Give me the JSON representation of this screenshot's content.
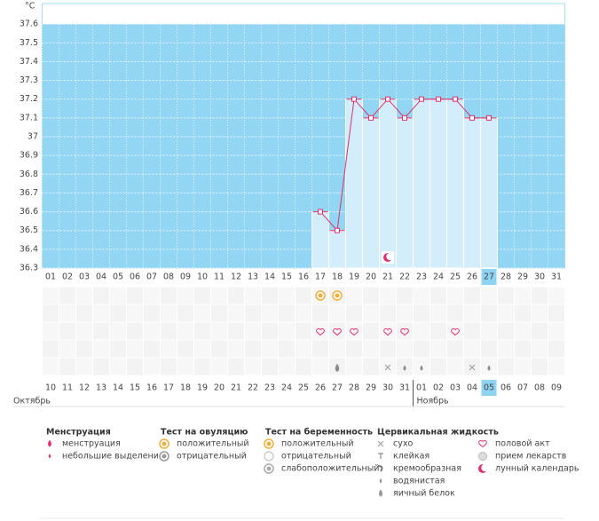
{
  "chart_data": {
    "type": "line",
    "y_unit": "°C",
    "categories": [
      "01",
      "02",
      "03",
      "04",
      "05",
      "06",
      "07",
      "08",
      "09",
      "10",
      "11",
      "12",
      "13",
      "14",
      "15",
      "16",
      "17",
      "18",
      "19",
      "20",
      "21",
      "22",
      "23",
      "24",
      "25",
      "26",
      "27",
      "28",
      "29",
      "30",
      "31"
    ],
    "values": [
      null,
      null,
      null,
      null,
      null,
      null,
      null,
      null,
      null,
      null,
      null,
      null,
      null,
      null,
      null,
      null,
      36.6,
      36.5,
      37.2,
      37.1,
      37.2,
      37.1,
      37.2,
      37.2,
      37.2,
      37.1,
      37.1,
      null,
      null,
      null,
      null
    ],
    "ylim": [
      36.3,
      37.7
    ],
    "yticks": [
      36.3,
      36.4,
      36.5,
      36.6,
      36.7,
      36.8,
      36.9,
      37,
      37.1,
      37.2,
      37.3,
      37.4,
      37.5,
      37.6
    ],
    "grid": true,
    "color": "#e0306a",
    "bar_color": "#d3edfb",
    "background_color": "#93d6f3",
    "highlight_category": "27",
    "dates": [
      "10",
      "11",
      "12",
      "13",
      "14",
      "15",
      "16",
      "17",
      "18",
      "19",
      "20",
      "21",
      "22",
      "23",
      "24",
      "25",
      "26",
      "27",
      "28",
      "29",
      "30",
      "31",
      "01",
      "02",
      "03",
      "04",
      "05",
      "06",
      "07",
      "08",
      "09"
    ],
    "red_dates": [
      "12",
      "13",
      "19",
      "20",
      "26",
      "27",
      "02",
      "03",
      "09"
    ],
    "highlight_date": "05",
    "months": [
      "Октябрь",
      "Ноябрь"
    ],
    "ovulation_positive": [
      "17",
      "18"
    ],
    "intercourse": [
      "17",
      "18",
      "19",
      "21",
      "22",
      "25"
    ],
    "lunar": [
      "21"
    ],
    "fluid_eggwhite": [
      "18"
    ],
    "fluid_dry": [
      "21",
      "26"
    ],
    "fluid_watery": [
      "22",
      "23",
      "27"
    ]
  },
  "legend": [
    {
      "title": "Менструация",
      "items": [
        "менструация",
        "небольшие выделения"
      ]
    },
    {
      "title": "Тест на овуляцию",
      "items": [
        "положительный",
        "отрицательный"
      ]
    },
    {
      "title": "Тест на беременность",
      "items": [
        "положительный",
        "отрицательный",
        "слабоположительный"
      ]
    },
    {
      "title": "Цервикальная жидкость",
      "items": [
        "сухо",
        "клейкая",
        "кремообразная",
        "водянистая",
        "яичный белок"
      ]
    },
    {
      "items": [
        "половой акт",
        "прием лекарств",
        "лунный календарь"
      ]
    }
  ]
}
